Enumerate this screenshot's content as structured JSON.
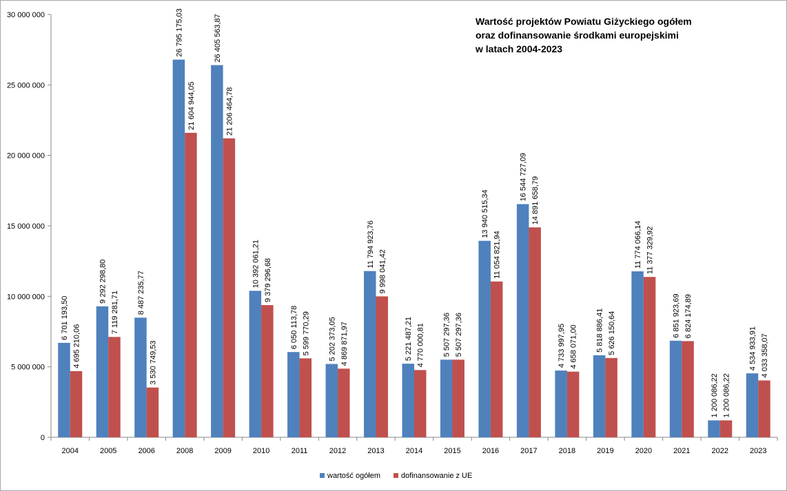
{
  "chart_data": {
    "type": "bar",
    "title_lines": [
      "Wartość projektów Powiatu Giżyckiego ogółem",
      "oraz dofinansowanie środkami europejskimi",
      "w latach 2004-2023"
    ],
    "categories": [
      "2004",
      "2005",
      "2006",
      "2008",
      "2009",
      "2010",
      "2011",
      "2012",
      "2013",
      "2014",
      "2015",
      "2016",
      "2017",
      "2018",
      "2019",
      "2020",
      "2021",
      "2022",
      "2023"
    ],
    "series": [
      {
        "name": "wartość ogółem",
        "color": "#4f81bd",
        "values": [
          6701193.5,
          9292298.8,
          8487235.77,
          26795175.03,
          26405563.87,
          10392061.21,
          6050113.78,
          5202373.05,
          11794923.76,
          5221487.21,
          5507297.36,
          13940515.34,
          16544727.09,
          4733997.95,
          5818886.41,
          11774066.14,
          6851923.69,
          1200086.22,
          4534933.91
        ],
        "labels": [
          "6 701 193,50",
          "9 292 298,80",
          "8 487 235,77",
          "26 795 175,03",
          "26 405 563,87",
          "10 392 061,21",
          "6 050 113,78",
          "5 202 373,05",
          "11 794 923,76",
          "5 221 487,21",
          "5 507 297,36",
          "13 940 515,34",
          "16 544 727,09",
          "4 733 997,95",
          "5 818 886,41",
          "11 774 066,14",
          "6 851 923,69",
          "1 200 086,22",
          "4 534 933,91"
        ]
      },
      {
        "name": "dofinansowanie z UE",
        "color": "#c0504d",
        "values": [
          4695210.06,
          7119281.71,
          3530749.53,
          21604944.05,
          21206464.78,
          9379296.68,
          5599770.29,
          4869871.97,
          9998041.42,
          4770000.81,
          5507297.36,
          11054821.94,
          14891658.79,
          4658071.0,
          5626150.64,
          11377329.92,
          6824174.89,
          1200086.22,
          4033358.07
        ],
        "labels": [
          "4 695 210,06",
          "7 119 281,71",
          "3 530 749,53",
          "21 604 944,05",
          "21 206 464,78",
          "9 379 296,68",
          "5 599 770,29",
          "4 869 871,97",
          "9 998 041,42",
          "4 770 000,81",
          "5 507 297,36",
          "11 054 821,94",
          "14 891 658,79",
          "4 658 071,00",
          "5 626 150,64",
          "11 377 329,92",
          "6 824 174,89",
          "1 200 086,22",
          "4 033 358,07"
        ]
      }
    ],
    "ylim": [
      0,
      30000000
    ],
    "yticks": [
      0,
      5000000,
      10000000,
      15000000,
      20000000,
      25000000,
      30000000
    ],
    "ytick_labels": [
      "0",
      "5 000 000",
      "10 000 000",
      "15 000 000",
      "20 000 000",
      "25 000 000",
      "30 000 000"
    ],
    "grid": false,
    "legend": "bottom-center"
  }
}
